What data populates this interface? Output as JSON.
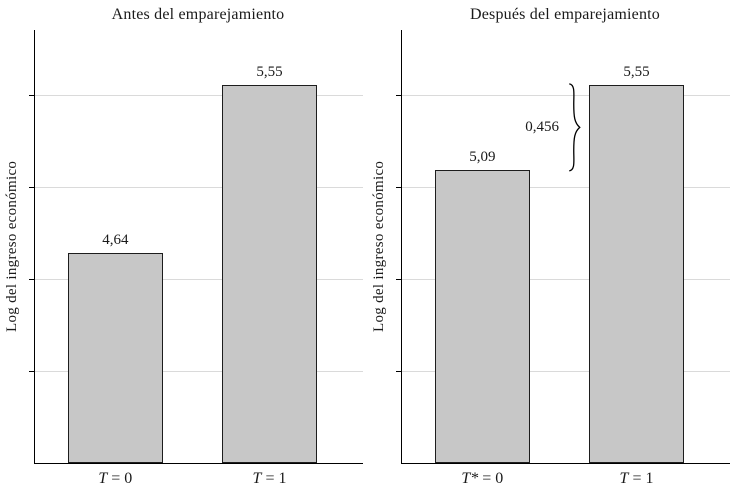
{
  "chart_data": [
    {
      "type": "bar",
      "title": "Antes del emparejamiento",
      "ylabel": "Log del ingreso económico",
      "xlabel": "",
      "categories": [
        "T = 0",
        "T = 1"
      ],
      "values": [
        4.64,
        5.55
      ],
      "value_labels": [
        "4,64",
        "5,55"
      ],
      "ylim": [
        3.5,
        5.85
      ],
      "gridlines": [
        4.0,
        4.5,
        5.0,
        5.5
      ],
      "grid": true,
      "bar_color": "#c7c7c7",
      "bar_border_color": "#1d1d1d"
    },
    {
      "type": "bar",
      "title": "Después del emparejamiento",
      "ylabel": "Log del ingreso económico",
      "xlabel": "",
      "categories": [
        "T* = 0",
        "T = 1"
      ],
      "values": [
        5.09,
        5.55
      ],
      "value_labels": [
        "5,09",
        "5,55"
      ],
      "ylim": [
        3.5,
        5.85
      ],
      "gridlines": [
        4.0,
        4.5,
        5.0,
        5.5
      ],
      "grid": true,
      "bar_color": "#c7c7c7",
      "bar_border_color": "#1d1d1d",
      "annotation": {
        "label": "0,456",
        "from": 5.09,
        "to": 5.55
      }
    }
  ]
}
